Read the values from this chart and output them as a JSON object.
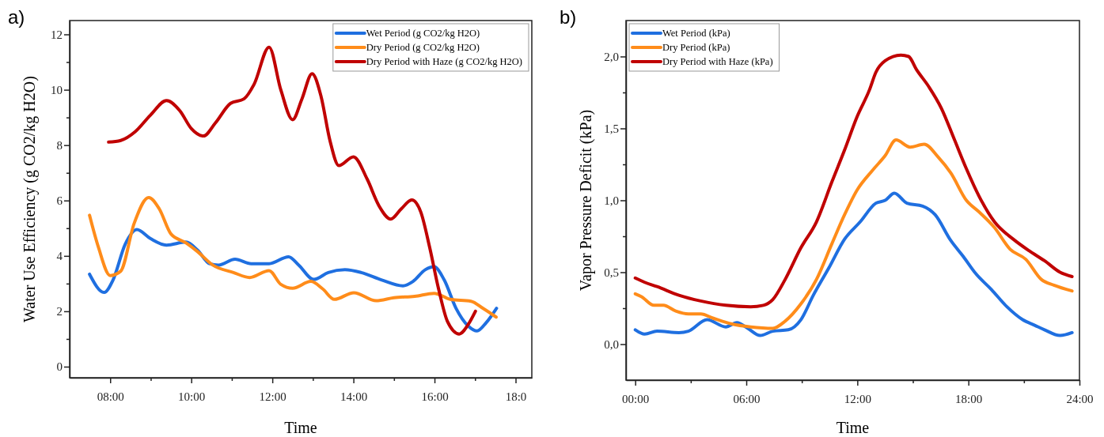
{
  "chart_data": [
    {
      "type": "line",
      "title": "a)",
      "xlabel": "Time",
      "ylabel": "Water Use Efficiency (g CO2/kg H2O)",
      "legend": "top right",
      "xlim": [
        7,
        18.4
      ],
      "ylim": [
        -0.4,
        12.5
      ],
      "xticks": [
        {
          "value": 8,
          "label": "08:00"
        },
        {
          "value": 9,
          "label": null
        },
        {
          "value": 10,
          "label": "10:00"
        },
        {
          "value": 11,
          "label": null
        },
        {
          "value": 12,
          "label": "12:00"
        },
        {
          "value": 13,
          "label": null
        },
        {
          "value": 14,
          "label": "14:00"
        },
        {
          "value": 15,
          "label": null
        },
        {
          "value": 16,
          "label": "16:00"
        },
        {
          "value": 17,
          "label": null
        },
        {
          "value": 18,
          "label": "18:0"
        }
      ],
      "yticks": [
        0,
        {
          "value": 1,
          "label": null
        },
        2,
        {
          "value": 3,
          "label": null
        },
        4,
        {
          "value": 5,
          "label": null
        },
        6,
        {
          "value": 7,
          "label": null
        },
        8,
        {
          "value": 9,
          "label": null
        },
        10,
        {
          "value": 11,
          "label": null
        },
        12
      ],
      "series": [
        {
          "name": "Wet Period (g CO2/kg H2O)",
          "color": "#1f6fe0",
          "x": [
            7.49,
            7.85,
            8.07,
            8.37,
            8.66,
            8.99,
            9.39,
            9.87,
            10.16,
            10.45,
            10.67,
            11.08,
            11.48,
            11.92,
            12.4,
            12.65,
            13.02,
            13.38,
            13.79,
            14.19,
            14.7,
            15.22,
            15.47,
            15.77,
            15.99,
            16.24,
            16.53,
            16.83,
            17.05,
            17.27,
            17.53
          ],
          "values": [
            3.34,
            2.68,
            3.13,
            4.42,
            4.95,
            4.63,
            4.39,
            4.5,
            4.2,
            3.72,
            3.67,
            3.88,
            3.72,
            3.72,
            3.97,
            3.67,
            3.15,
            3.4,
            3.5,
            3.4,
            3.13,
            2.92,
            3.08,
            3.5,
            3.61,
            3.13,
            2.11,
            1.47,
            1.29,
            1.58,
            2.11
          ]
        },
        {
          "name": "Dry Period (g CO2/kg H2O)",
          "color": "#ff8c1a",
          "x": [
            7.49,
            7.71,
            8.0,
            8.26,
            8.59,
            8.95,
            9.21,
            9.5,
            9.87,
            10.16,
            10.53,
            11.04,
            11.44,
            11.92,
            12.21,
            12.5,
            12.95,
            13.24,
            13.53,
            14.01,
            14.56,
            15.0,
            15.51,
            15.99,
            16.39,
            16.9,
            17.19,
            17.52
          ],
          "values": [
            5.47,
            4.31,
            3.29,
            3.45,
            5.17,
            6.11,
            5.7,
            4.79,
            4.47,
            4.15,
            3.67,
            3.4,
            3.22,
            3.47,
            2.97,
            2.83,
            3.08,
            2.81,
            2.43,
            2.67,
            2.38,
            2.49,
            2.54,
            2.65,
            2.43,
            2.36,
            2.11,
            1.79
          ]
        },
        {
          "name": "Dry Period with Haze (g CO2/kg H2O)",
          "color": "#c00000",
          "x": [
            7.96,
            8.26,
            8.62,
            8.99,
            9.39,
            9.72,
            10.0,
            10.3,
            10.6,
            10.97,
            11.3,
            11.55,
            11.92,
            12.21,
            12.5,
            12.73,
            12.98,
            13.2,
            13.42,
            13.64,
            14.0,
            14.34,
            14.63,
            14.92,
            15.18,
            15.44,
            15.66,
            15.88,
            16.1,
            16.32,
            16.61,
            16.83,
            17.01
          ],
          "values": [
            8.11,
            8.17,
            8.49,
            9.08,
            9.61,
            9.24,
            8.6,
            8.33,
            8.81,
            9.51,
            9.67,
            10.2,
            11.54,
            9.99,
            8.92,
            9.67,
            10.58,
            9.77,
            8.17,
            7.26,
            7.58,
            6.77,
            5.81,
            5.33,
            5.7,
            6.02,
            5.59,
            4.31,
            2.81,
            1.63,
            1.18,
            1.52,
            2.0
          ]
        }
      ]
    },
    {
      "type": "line",
      "title": "b)",
      "xlabel": "Time",
      "ylabel": "Vapor Pressure Deficit (kPa)",
      "legend": "top left",
      "xlim": [
        -0.5,
        24
      ],
      "ylim": [
        -0.25,
        2.25
      ],
      "xticks": [
        {
          "value": 0,
          "label": "00:00"
        },
        {
          "value": 3,
          "label": null
        },
        {
          "value": 6,
          "label": "06:00"
        },
        {
          "value": 9,
          "label": null
        },
        {
          "value": 12,
          "label": "12:00"
        },
        {
          "value": 15,
          "label": null
        },
        {
          "value": 18,
          "label": "18:00"
        },
        {
          "value": 21,
          "label": null
        },
        {
          "value": 24,
          "label": "24:00"
        }
      ],
      "yticks": [
        {
          "value": 0,
          "label": "0,0"
        },
        {
          "value": 0.25,
          "label": null
        },
        {
          "value": 0.5,
          "label": "0,5"
        },
        {
          "value": 0.75,
          "label": null
        },
        {
          "value": 1,
          "label": "1,0"
        },
        {
          "value": 1.25,
          "label": null
        },
        {
          "value": 1.5,
          "label": "1,5"
        },
        {
          "value": 1.75,
          "label": null
        },
        {
          "value": 2,
          "label": "2,0"
        }
      ],
      "series": [
        {
          "name": "Wet Period (kPa)",
          "color": "#1f6fe0",
          "x": [
            0,
            0.51,
            1.18,
            2.36,
            2.87,
            3.88,
            4.89,
            5.49,
            6.08,
            6.75,
            7.43,
            8.27,
            8.95,
            9.62,
            10.46,
            11.31,
            12.15,
            13.0,
            13.5,
            14.0,
            14.68,
            15.53,
            16.2,
            17.05,
            17.72,
            18.4,
            19.24,
            20.08,
            20.93,
            21.6,
            22.11,
            22.95,
            23.6
          ],
          "values": [
            0.1,
            0.07,
            0.09,
            0.08,
            0.09,
            0.17,
            0.12,
            0.15,
            0.11,
            0.06,
            0.09,
            0.1,
            0.17,
            0.34,
            0.53,
            0.73,
            0.85,
            0.98,
            1.0,
            1.05,
            0.98,
            0.96,
            0.9,
            0.72,
            0.61,
            0.49,
            0.38,
            0.26,
            0.17,
            0.13,
            0.1,
            0.06,
            0.08
          ]
        },
        {
          "name": "Dry Period (kPa)",
          "color": "#ff8c1a",
          "x": [
            0,
            0.34,
            1.01,
            1.52,
            2.19,
            2.87,
            3.54,
            4.22,
            5.23,
            6.24,
            7.43,
            8.1,
            8.95,
            9.79,
            10.63,
            11.31,
            11.98,
            12.83,
            13.5,
            14.09,
            14.85,
            15.61,
            16.37,
            17.05,
            17.89,
            18.57,
            19.41,
            20.25,
            21.1,
            21.94,
            22.62,
            23.6
          ],
          "values": [
            0.35,
            0.33,
            0.27,
            0.27,
            0.23,
            0.21,
            0.21,
            0.18,
            0.14,
            0.12,
            0.11,
            0.16,
            0.28,
            0.45,
            0.7,
            0.9,
            1.07,
            1.21,
            1.31,
            1.42,
            1.37,
            1.39,
            1.3,
            1.19,
            1.0,
            0.92,
            0.81,
            0.66,
            0.59,
            0.45,
            0.41,
            0.37
          ]
        },
        {
          "name": "Dry Period with Haze (kPa)",
          "color": "#c00000",
          "x": [
            0,
            0.51,
            1.18,
            2.36,
            3.54,
            4.89,
            6.24,
            6.92,
            7.43,
            8.1,
            8.95,
            9.79,
            10.63,
            11.31,
            11.98,
            12.66,
            13.0,
            13.5,
            14.35,
            14.77,
            15.19,
            15.86,
            16.54,
            17.22,
            17.89,
            18.57,
            19.41,
            20.42,
            21.27,
            22.11,
            22.95,
            23.6
          ],
          "values": [
            0.46,
            0.43,
            0.4,
            0.34,
            0.3,
            0.27,
            0.26,
            0.27,
            0.31,
            0.45,
            0.67,
            0.85,
            1.13,
            1.35,
            1.58,
            1.77,
            1.89,
            1.97,
            2.01,
            2.0,
            1.91,
            1.79,
            1.64,
            1.43,
            1.22,
            1.03,
            0.85,
            0.73,
            0.65,
            0.58,
            0.5,
            0.47
          ]
        }
      ]
    }
  ]
}
